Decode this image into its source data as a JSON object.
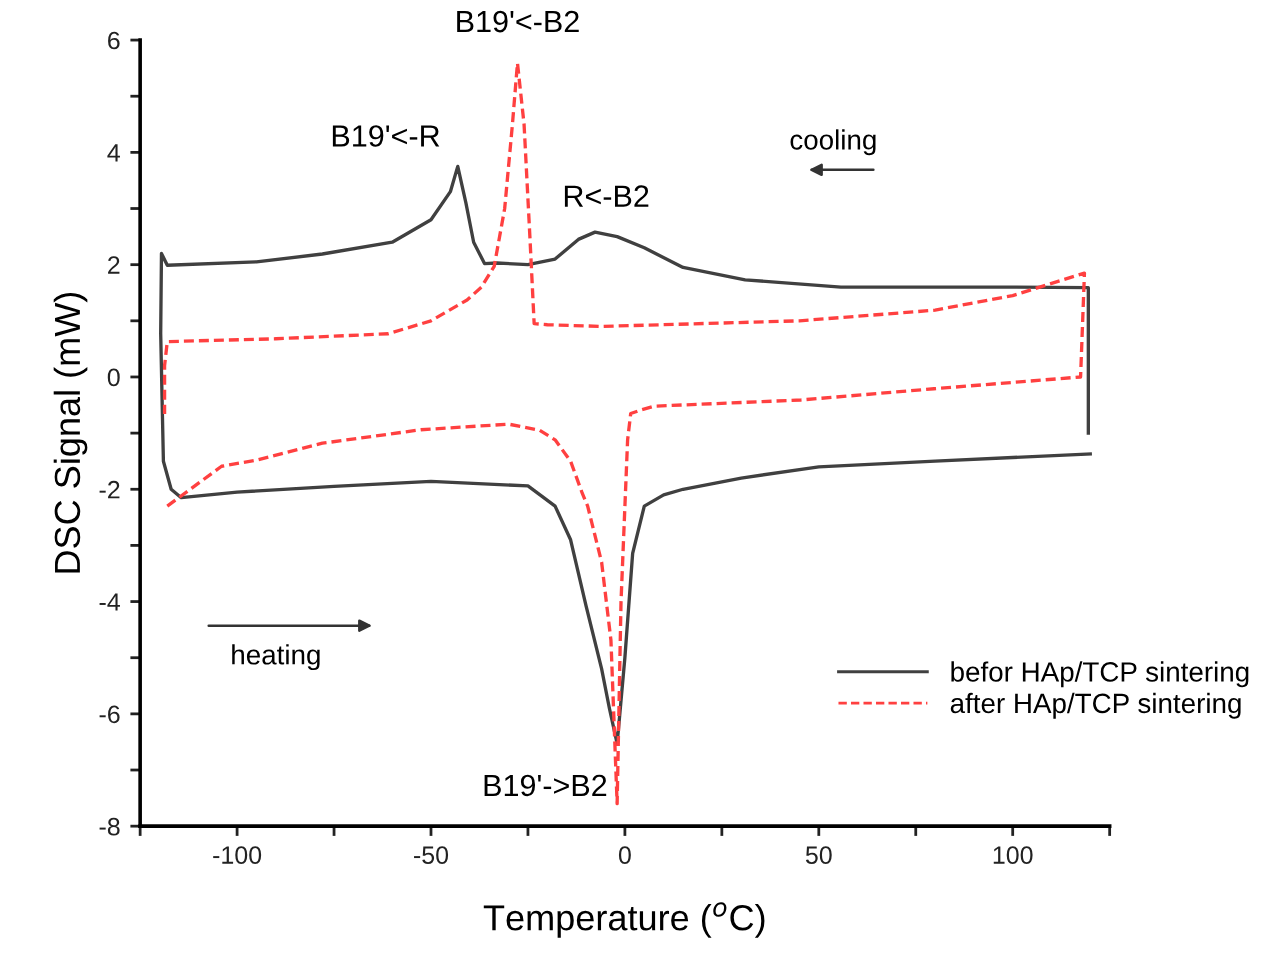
{
  "chart_data": {
    "type": "line",
    "xlabel": "Temperature ($^{o}$C)",
    "ylabel": "DSC Signal (mW)",
    "xlim": [
      -125,
      125
    ],
    "ylim": [
      -8,
      6
    ],
    "xticks": [
      {
        "value": -125,
        "label": null
      },
      -100,
      {
        "value": -75,
        "label": null
      },
      -50,
      {
        "value": -25,
        "label": null
      },
      0,
      {
        "value": 25,
        "label": null
      },
      50,
      {
        "value": 75,
        "label": null
      },
      100,
      {
        "value": 125,
        "label": null
      }
    ],
    "yticks": [
      -8,
      {
        "value": -7,
        "label": null
      },
      -6,
      {
        "value": -5,
        "label": null
      },
      -4,
      {
        "value": -3,
        "label": null
      },
      -2,
      {
        "value": -1,
        "label": null
      },
      0,
      {
        "value": 1,
        "label": null
      },
      2,
      {
        "value": 3,
        "label": null
      },
      4,
      {
        "value": 5,
        "label": null
      },
      6
    ],
    "legend": "bottom right",
    "grid": false,
    "series": [
      {
        "name": "befor HAp/TCP sintering",
        "color": "#404040",
        "line_style": "solid",
        "x": [
          119.5,
          119.5,
          100,
          55.7,
          31,
          15,
          5,
          -2,
          -7.7,
          -12,
          -18,
          -25,
          -33,
          -36.2,
          -39,
          -41,
          -43.1,
          -45,
          -50,
          -60,
          -78,
          -95,
          -118,
          -119.5,
          -119.7,
          -119,
          -117,
          -114.4,
          -100,
          -75,
          -50,
          -25,
          -18,
          -14,
          -10,
          -6,
          -4,
          -2,
          0,
          2,
          5,
          10,
          15,
          30,
          50,
          80,
          120
        ],
        "values": [
          -1.0,
          1.59,
          1.6,
          1.6,
          1.73,
          1.95,
          2.3,
          2.5,
          2.58,
          2.45,
          2.1,
          2.0,
          2.03,
          2.02,
          2.4,
          3.1,
          3.75,
          3.3,
          2.8,
          2.4,
          2.19,
          2.05,
          1.99,
          2.2,
          0.77,
          -1.5,
          -2.0,
          -2.15,
          -2.05,
          -1.95,
          -1.86,
          -1.94,
          -2.3,
          -2.9,
          -4.08,
          -5.2,
          -5.9,
          -6.53,
          -5.0,
          -3.14,
          -2.3,
          -2.1,
          -2.0,
          -1.8,
          -1.6,
          -1.5,
          -1.37
        ]
      },
      {
        "name": "after HAp/TCP sintering",
        "color": "#ff4040",
        "line_style": "dashed",
        "x": [
          -118,
          -104,
          -95,
          -78,
          -52.6,
          -30,
          -22,
          -18,
          -14,
          -11,
          -9.6,
          -6,
          -3.6,
          -2,
          -1,
          0.7,
          1.5,
          4.1,
          7.6,
          45.4,
          79.7,
          117.5,
          118.5,
          100,
          80,
          45,
          -6,
          -20,
          -23.4,
          -24.5,
          -26,
          -27.7,
          -29,
          -31,
          -33.7,
          -37,
          -40.7,
          -50,
          -61,
          -90,
          -118,
          -118.7,
          -118.7
        ],
        "values": [
          -2.3,
          -1.59,
          -1.48,
          -1.18,
          -0.94,
          -0.84,
          -0.95,
          -1.12,
          -1.5,
          -2.07,
          -2.3,
          -3.3,
          -4.69,
          -7.6,
          -4.0,
          -1.12,
          -0.65,
          -0.59,
          -0.52,
          -0.41,
          -0.21,
          0.0,
          1.85,
          1.45,
          1.19,
          1.0,
          0.9,
          0.93,
          0.95,
          2.5,
          4.5,
          5.59,
          4.5,
          3.0,
          1.97,
          1.6,
          1.37,
          1.0,
          0.77,
          0.68,
          0.63,
          0.2,
          -0.66
        ]
      }
    ],
    "annotations": [
      {
        "text": "B19'<-B2",
        "x": -27.7,
        "y": 5.59
      },
      {
        "text": "B19'<-R",
        "x": -43.1,
        "y": 3.75
      },
      {
        "text": "R<-B2",
        "x": -7.7,
        "y": 2.58
      },
      {
        "text": "B19'->B2",
        "x": -2,
        "y": -6.53
      },
      "cooling",
      "heating"
    ]
  }
}
